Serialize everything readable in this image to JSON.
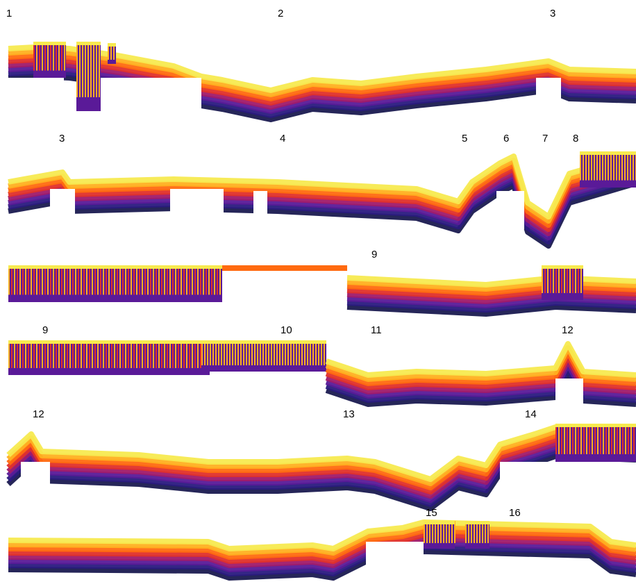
{
  "panels": [
    {
      "labels": [
        "1",
        "2",
        "3"
      ]
    },
    {
      "labels": [
        "3",
        "4",
        "5",
        "6",
        "7",
        "8"
      ]
    },
    {
      "labels": [
        "9"
      ]
    },
    {
      "labels": [
        "9",
        "10",
        "11",
        "12"
      ]
    },
    {
      "labels": [
        "12",
        "13",
        "14"
      ]
    },
    {
      "labels": [
        "15",
        "16"
      ]
    }
  ]
}
